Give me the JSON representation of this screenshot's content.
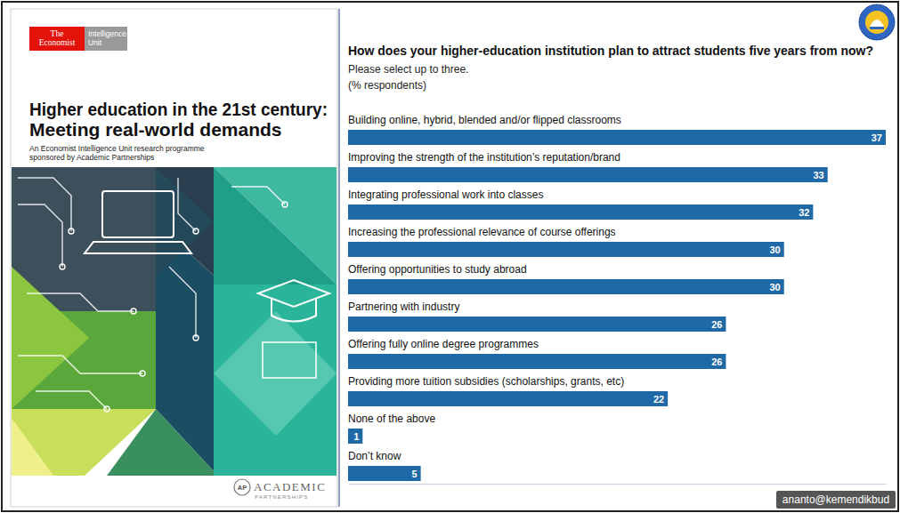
{
  "chart_data": {
    "type": "bar",
    "orientation": "horizontal",
    "title": "How does your higher-education institution plan to attract students five years from now?",
    "subtitle": [
      "Please select up to three.",
      "(% respondents)"
    ],
    "categories": [
      "Building online, hybrid, blended and/or flipped classrooms",
      "Improving the strength of the institution’s reputation/brand",
      "Integrating professional work into classes",
      "Increasing the professional relevance of course offerings",
      "Offering opportunities to study abroad",
      "Partnering with industry",
      "Offering fully online degree programmes",
      "Providing more tuition subsidies (scholarships, grants, etc)",
      "None of the above",
      "Don’t know"
    ],
    "values": [
      37,
      33,
      32,
      30,
      30,
      26,
      26,
      22,
      1,
      5
    ],
    "color": "#1f69a6",
    "xlim": [
      0,
      37
    ],
    "data_labels": true,
    "tick_labels": "y",
    "grid": false
  },
  "cover": {
    "publisher": [
      "The",
      "Economist"
    ],
    "unit": [
      "Intelligence",
      "Unit"
    ],
    "title": [
      "Higher education in the 21st century:",
      "Meeting real-world demands"
    ],
    "description": [
      "An Economist Intelligence Unit research programme",
      "sponsored by Academic Partnerships"
    ],
    "sponsor_mark": "AP",
    "sponsor_name": "ACADEMIC",
    "sponsor_tagline": "PARTNERSHIPS"
  },
  "footer": "ananto@kemendikbud"
}
